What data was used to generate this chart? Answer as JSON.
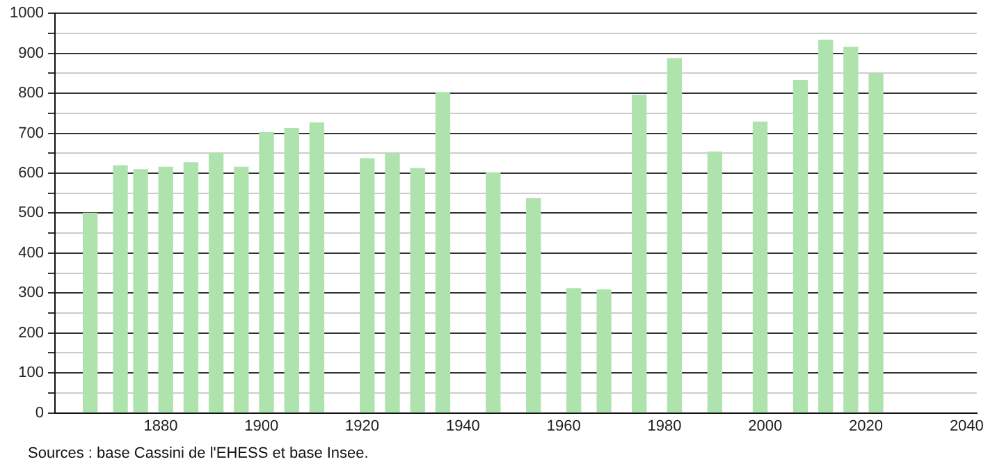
{
  "chart_data": {
    "type": "bar",
    "x": [
      1866,
      1872,
      1876,
      1881,
      1886,
      1891,
      1896,
      1901,
      1906,
      1911,
      1921,
      1926,
      1931,
      1936,
      1946,
      1954,
      1962,
      1968,
      1975,
      1982,
      1990,
      1999,
      2007,
      2012,
      2017,
      2022
    ],
    "values": [
      500,
      619,
      609,
      615,
      626,
      650,
      615,
      702,
      712,
      726,
      636,
      649,
      612,
      802,
      601,
      536,
      311,
      308,
      795,
      887,
      653,
      728,
      832,
      933,
      915,
      849
    ],
    "color": "#aee3ae",
    "xlim": [
      1859,
      2042
    ],
    "xticks": [
      1880,
      1900,
      1920,
      1940,
      1960,
      1980,
      2000,
      2020,
      2040
    ],
    "ylim": [
      0,
      1000
    ],
    "yticks": [
      0,
      {
        "value": 50,
        "label": null
      },
      100,
      {
        "value": 150,
        "label": null
      },
      200,
      {
        "value": 250,
        "label": null
      },
      300,
      {
        "value": 350,
        "label": null
      },
      400,
      {
        "value": 450,
        "label": null
      },
      500,
      {
        "value": 550,
        "label": null
      },
      600,
      {
        "value": 650,
        "label": null
      },
      700,
      {
        "value": 750,
        "label": null
      },
      800,
      {
        "value": 850,
        "label": null
      },
      900,
      {
        "value": 950,
        "label": null
      },
      1000
    ],
    "grid": "y",
    "legend": false,
    "annotations": [
      "Sources : base Cassini de l'EHESS et base Insee."
    ]
  }
}
